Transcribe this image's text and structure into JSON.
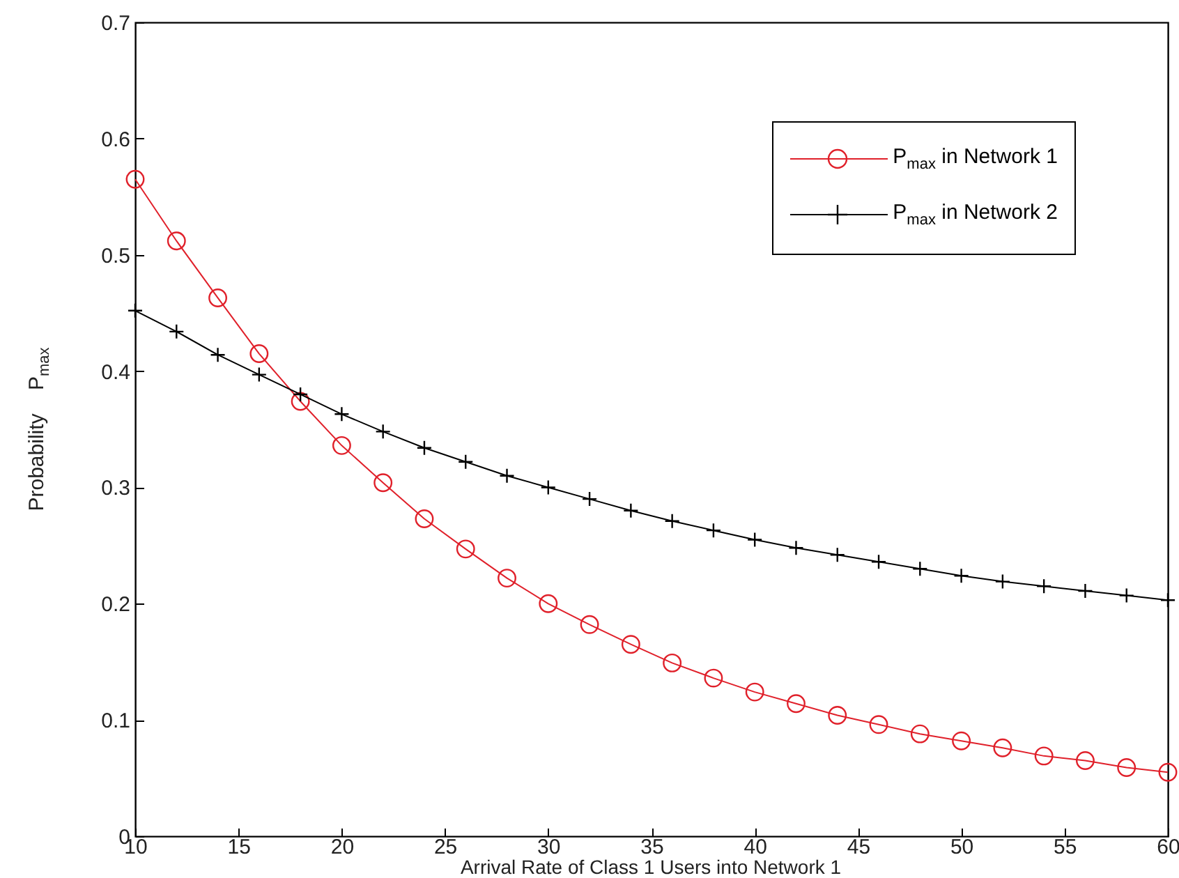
{
  "chart_data": {
    "type": "line",
    "xlabel": "Arrival Rate of Class 1 Users into Network 1",
    "ylabel": "Probability    P$_{max}$",
    "x": [
      10,
      12,
      14,
      16,
      18,
      20,
      22,
      24,
      26,
      28,
      30,
      32,
      34,
      36,
      38,
      40,
      42,
      44,
      46,
      48,
      50,
      52,
      54,
      56,
      58,
      60
    ],
    "series": [
      {
        "name": "P$_{max}$ in Network 1",
        "color": "#e0202a",
        "marker": "circle",
        "values": [
          0.565,
          0.512,
          0.463,
          0.415,
          0.374,
          0.336,
          0.304,
          0.273,
          0.247,
          0.222,
          0.2,
          0.182,
          0.165,
          0.149,
          0.136,
          0.124,
          0.114,
          0.104,
          0.096,
          0.088,
          0.082,
          0.076,
          0.069,
          0.065,
          0.059,
          0.055
        ]
      },
      {
        "name": "P$_{max}$ in Network 2",
        "color": "#000000",
        "marker": "cross",
        "values": [
          0.452,
          0.434,
          0.414,
          0.397,
          0.38,
          0.363,
          0.348,
          0.334,
          0.322,
          0.31,
          0.3,
          0.29,
          0.28,
          0.271,
          0.263,
          0.255,
          0.248,
          0.242,
          0.236,
          0.23,
          0.224,
          0.219,
          0.215,
          0.211,
          0.207,
          0.203
        ]
      }
    ],
    "xlim": [
      10,
      60
    ],
    "xticks": [
      10,
      15,
      20,
      25,
      30,
      35,
      40,
      45,
      50,
      55,
      60
    ],
    "ylim": [
      0,
      0.7
    ],
    "yticks": [
      0,
      0.1,
      0.2,
      0.3,
      0.4,
      0.5,
      0.6,
      0.7
    ],
    "grid": false,
    "legend": "top right",
    "line_style": "solid"
  }
}
